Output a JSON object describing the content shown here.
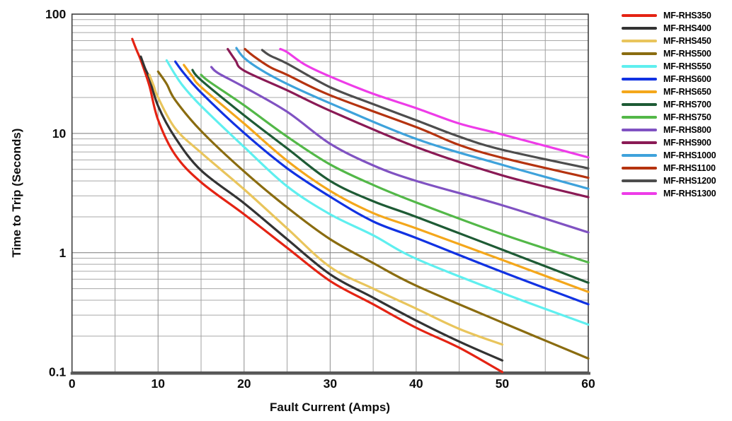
{
  "chart_data": {
    "type": "line",
    "title": "",
    "xlabel": "Fault Current (Amps)",
    "ylabel": "Time to Trip (Seconds)",
    "x_axis": {
      "min": 0,
      "max": 60,
      "scale": "linear",
      "major_tick_step": 10,
      "minor_gridline_step": 5,
      "ticks": [
        {
          "value": 0,
          "label": "0"
        },
        {
          "value": 10,
          "label": "10"
        },
        {
          "value": 20,
          "label": "20"
        },
        {
          "value": 30,
          "label": "30"
        },
        {
          "value": 40,
          "label": "40"
        },
        {
          "value": 50,
          "label": "50"
        },
        {
          "value": 60,
          "label": "60"
        }
      ]
    },
    "y_axis": {
      "min": 0.1,
      "max": 100,
      "scale": "log",
      "minor_gridlines": "log-decades",
      "ticks": [
        {
          "value": 100,
          "label": "100"
        },
        {
          "value": 10,
          "label": "10"
        },
        {
          "value": 1,
          "label": "1"
        },
        {
          "value": 0.1,
          "label": "0.1"
        }
      ]
    },
    "grid": true,
    "legend_position": "right",
    "series": [
      {
        "name": "MF-RHS350",
        "color": "#e42313",
        "points": [
          [
            7,
            62
          ],
          [
            7.5,
            50
          ],
          [
            8,
            41
          ],
          [
            9,
            25
          ],
          [
            10,
            13
          ],
          [
            12,
            6.6
          ],
          [
            15,
            3.9
          ],
          [
            20,
            2.1
          ],
          [
            25,
            1.1
          ],
          [
            30,
            0.58
          ],
          [
            35,
            0.37
          ],
          [
            40,
            0.235
          ],
          [
            45,
            0.16
          ],
          [
            50,
            0.1
          ]
        ]
      },
      {
        "name": "MF-RHS400",
        "color": "#333333",
        "points": [
          [
            8,
            44
          ],
          [
            8.5,
            35
          ],
          [
            9,
            29
          ],
          [
            10,
            17
          ],
          [
            12,
            9.2
          ],
          [
            15,
            4.9
          ],
          [
            20,
            2.6
          ],
          [
            25,
            1.3
          ],
          [
            30,
            0.66
          ],
          [
            35,
            0.42
          ],
          [
            40,
            0.27
          ],
          [
            45,
            0.18
          ],
          [
            50,
            0.125
          ]
        ]
      },
      {
        "name": "MF-RHS450",
        "color": "#e9c55c",
        "points": [
          [
            9,
            31
          ],
          [
            9.5,
            25
          ],
          [
            10,
            20
          ],
          [
            12,
            11
          ],
          [
            15,
            6.9
          ],
          [
            20,
            3.4
          ],
          [
            25,
            1.6
          ],
          [
            30,
            0.76
          ],
          [
            35,
            0.5
          ],
          [
            40,
            0.34
          ],
          [
            45,
            0.23
          ],
          [
            50,
            0.17
          ]
        ]
      },
      {
        "name": "MF-RHS500",
        "color": "#8a6c10",
        "points": [
          [
            10,
            33
          ],
          [
            11,
            26
          ],
          [
            12,
            19
          ],
          [
            15,
            10.5
          ],
          [
            20,
            4.8
          ],
          [
            25,
            2.4
          ],
          [
            30,
            1.3
          ],
          [
            35,
            0.82
          ],
          [
            40,
            0.53
          ],
          [
            50,
            0.26
          ],
          [
            60,
            0.13
          ]
        ]
      },
      {
        "name": "MF-RHS550",
        "color": "#5fefef",
        "points": [
          [
            11,
            41
          ],
          [
            12,
            31
          ],
          [
            13,
            24.5
          ],
          [
            15,
            17
          ],
          [
            20,
            7.7
          ],
          [
            25,
            3.6
          ],
          [
            30,
            2.1
          ],
          [
            35,
            1.4
          ],
          [
            40,
            0.89
          ],
          [
            50,
            0.46
          ],
          [
            60,
            0.25
          ]
        ]
      },
      {
        "name": "MF-RHS600",
        "color": "#1132e2",
        "points": [
          [
            12,
            40
          ],
          [
            13,
            32
          ],
          [
            15,
            22
          ],
          [
            20,
            10.1
          ],
          [
            25,
            5.1
          ],
          [
            30,
            2.95
          ],
          [
            35,
            1.83
          ],
          [
            40,
            1.33
          ],
          [
            50,
            0.69
          ],
          [
            60,
            0.37
          ]
        ]
      },
      {
        "name": "MF-RHS650",
        "color": "#f4a71b",
        "points": [
          [
            13,
            37.5
          ],
          [
            14,
            30
          ],
          [
            15,
            24.5
          ],
          [
            20,
            12.1
          ],
          [
            25,
            5.9
          ],
          [
            30,
            3.3
          ],
          [
            35,
            2.15
          ],
          [
            40,
            1.6
          ],
          [
            50,
            0.87
          ],
          [
            60,
            0.47
          ]
        ]
      },
      {
        "name": "MF-RHS700",
        "color": "#1e5b35",
        "points": [
          [
            14,
            34
          ],
          [
            15,
            28
          ],
          [
            20,
            14.2
          ],
          [
            25,
            7.5
          ],
          [
            30,
            4
          ],
          [
            35,
            2.7
          ],
          [
            40,
            2
          ],
          [
            50,
            1.06
          ],
          [
            60,
            0.56
          ]
        ]
      },
      {
        "name": "MF-RHS750",
        "color": "#53b848",
        "points": [
          [
            15,
            31
          ],
          [
            16,
            27
          ],
          [
            20,
            17.2
          ],
          [
            25,
            9.4
          ],
          [
            30,
            5.5
          ],
          [
            35,
            3.7
          ],
          [
            40,
            2.64
          ],
          [
            50,
            1.43
          ],
          [
            60,
            0.83
          ]
        ]
      },
      {
        "name": "MF-RHS800",
        "color": "#8052c2",
        "points": [
          [
            16.2,
            36
          ],
          [
            17,
            32
          ],
          [
            20,
            24.5
          ],
          [
            25,
            15.2
          ],
          [
            30,
            8.2
          ],
          [
            35,
            5.4
          ],
          [
            40,
            4
          ],
          [
            50,
            2.5
          ],
          [
            60,
            1.48
          ]
        ]
      },
      {
        "name": "MF-RHS900",
        "color": "#8a1a55",
        "points": [
          [
            18.1,
            51
          ],
          [
            19,
            41
          ],
          [
            20,
            33.6
          ],
          [
            25,
            23
          ],
          [
            30,
            15.5
          ],
          [
            40,
            7.7
          ],
          [
            50,
            4.45
          ],
          [
            60,
            2.92
          ]
        ]
      },
      {
        "name": "MF-RHS1000",
        "color": "#3ea2db",
        "points": [
          [
            19.1,
            52
          ],
          [
            20,
            43
          ],
          [
            22,
            34
          ],
          [
            25,
            26
          ],
          [
            30,
            17.9
          ],
          [
            40,
            9
          ],
          [
            50,
            5.45
          ],
          [
            60,
            3.44
          ]
        ]
      },
      {
        "name": "MF-RHS1100",
        "color": "#b5330f",
        "points": [
          [
            20.1,
            51
          ],
          [
            21,
            45
          ],
          [
            23,
            36
          ],
          [
            25,
            31
          ],
          [
            30,
            20.9
          ],
          [
            40,
            11.3
          ],
          [
            45,
            8
          ],
          [
            50,
            6.25
          ],
          [
            60,
            4.25
          ]
        ]
      },
      {
        "name": "MF-RHS1200",
        "color": "#4d4d4d",
        "points": [
          [
            22.1,
            50
          ],
          [
            23,
            45
          ],
          [
            25,
            38.5
          ],
          [
            30,
            24.4
          ],
          [
            35,
            17.6
          ],
          [
            40,
            12.9
          ],
          [
            45,
            9.4
          ],
          [
            50,
            7.3
          ],
          [
            60,
            5.1
          ]
        ]
      },
      {
        "name": "MF-RHS1300",
        "color": "#ee3ce8",
        "points": [
          [
            24.2,
            51
          ],
          [
            25,
            48
          ],
          [
            27,
            38
          ],
          [
            30,
            30
          ],
          [
            35,
            21.5
          ],
          [
            40,
            16.3
          ],
          [
            45,
            12.1
          ],
          [
            50,
            9.8
          ],
          [
            60,
            6.3
          ]
        ]
      }
    ],
    "style": {
      "curve_stroke_width": 3.2,
      "grid_minor_color": "#a8a8a8",
      "grid_major_color": "#7a7a7a",
      "border_color": "#3f3f3f",
      "axis_color": "#5a5a5a",
      "tick_label_color": "#0d0d0d"
    }
  }
}
